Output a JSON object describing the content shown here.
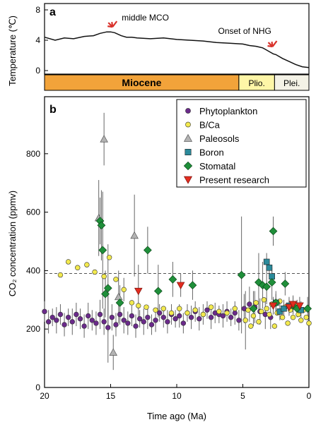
{
  "chart_data": [
    {
      "panel_label": "a",
      "type": "line",
      "ylabel": "Temperature (℃)",
      "xlim": [
        20,
        0
      ],
      "ylim": [
        0,
        8
      ],
      "y_ticks": [
        "8",
        "4",
        "0"
      ],
      "series": [
        {
          "x": [
            20,
            19.2,
            18.5,
            17.8,
            17,
            16.3,
            15.8,
            15.3,
            15.0,
            14.7,
            14.2,
            13.8,
            13.4,
            13,
            12,
            11,
            10,
            9,
            8,
            7,
            6,
            5,
            4.5,
            4,
            3.5,
            3.3,
            3,
            2.7,
            2.5,
            2,
            1.5,
            1,
            0.5,
            0
          ],
          "y": [
            4.4,
            4.0,
            4.3,
            4.2,
            4.5,
            4.6,
            4.9,
            5.1,
            5.1,
            5.0,
            4.6,
            4.4,
            4.4,
            4.3,
            4.2,
            4.3,
            4.1,
            4.0,
            3.9,
            3.7,
            3.6,
            3.5,
            3.3,
            3.2,
            3.0,
            2.8,
            2.5,
            2.2,
            2.1,
            1.6,
            1.2,
            0.8,
            0.5,
            0.4
          ]
        }
      ],
      "annotations": [
        {
          "text": "middle MCO",
          "x": 14.8,
          "y": 5.2,
          "arrow_color": "#d9322b"
        },
        {
          "text": "Onset of NHG",
          "x": 2.7,
          "y": 2.6,
          "arrow_color": "#d9322b"
        }
      ],
      "epochs": [
        {
          "name": "Miocene",
          "start": 20,
          "end": 5.3,
          "color": "#f2a33a"
        },
        {
          "name": "Plio.",
          "start": 5.3,
          "end": 2.6,
          "color": "#fef6a7"
        },
        {
          "name": "Plei.",
          "start": 2.6,
          "end": 0,
          "color": "#f4f2e6"
        }
      ]
    },
    {
      "panel_label": "b",
      "type": "scatter",
      "xlabel": "Time ago (Ma)",
      "ylabel": "CO₂ concentration (ppmv)",
      "xlim": [
        20,
        0
      ],
      "ylim": [
        0,
        1000
      ],
      "x_ticks": [
        "20",
        "15",
        "10",
        "5",
        "0"
      ],
      "y_ticks": [
        "0",
        "200",
        "400",
        "600",
        "800"
      ],
      "reference_line": {
        "y": 390,
        "style": "dashed"
      },
      "legend_position": "top-right",
      "series": [
        {
          "name": "Phytoplankton",
          "marker": "circle",
          "color": "#6a2a8a",
          "x": [
            20,
            19.7,
            19.4,
            19.1,
            18.8,
            18.5,
            18.2,
            17.9,
            17.6,
            17.3,
            17,
            16.7,
            16.4,
            16.1,
            15.8,
            15.5,
            15.2,
            14.9,
            14.6,
            14.3,
            14,
            13.7,
            13.4,
            13.1,
            12.8,
            12.5,
            12.2,
            11.9,
            11.6,
            11.3,
            11,
            10.7,
            10.4,
            10.1,
            9.8,
            9.5,
            9.2,
            8.9,
            8.6,
            8.3,
            8,
            7.7,
            7.4,
            7.1,
            6.8,
            6.5,
            6.2,
            5.9,
            5.6,
            5.3,
            4.9,
            4.5,
            4.1,
            3.7,
            3.3,
            2.9
          ],
          "y": [
            260,
            225,
            240,
            230,
            250,
            215,
            240,
            225,
            250,
            235,
            210,
            245,
            230,
            220,
            250,
            225,
            205,
            240,
            215,
            250,
            230,
            220,
            245,
            210,
            235,
            225,
            240,
            215,
            230,
            255,
            240,
            225,
            250,
            235,
            245,
            220,
            255,
            240,
            260,
            235,
            250,
            265,
            240,
            255,
            250,
            245,
            260,
            240,
            255,
            230,
            270,
            285,
            275,
            260,
            250,
            240
          ],
          "y_err": [
            35,
            40,
            30,
            45,
            35,
            40,
            30,
            45,
            40,
            35,
            40,
            45,
            35,
            40,
            50,
            45,
            120,
            45,
            40,
            35,
            45,
            40,
            35,
            40,
            30,
            45,
            40,
            35,
            40,
            30,
            35,
            40,
            35,
            30,
            40,
            35,
            30,
            40,
            35,
            40,
            35,
            30,
            40,
            35,
            30,
            40,
            35,
            30,
            40,
            35,
            50,
            60,
            55,
            45,
            50,
            40
          ]
        },
        {
          "name": "B/Ca",
          "marker": "circle",
          "color": "#f2e94e",
          "x": [
            18.8,
            18.2,
            17.5,
            16.8,
            16.2,
            15.5,
            15.1,
            14.6,
            14,
            13.4,
            12.9,
            12.3,
            11.6,
            11,
            10.4,
            9.8,
            9.2,
            8.6,
            8,
            7.4,
            6.8,
            6.2,
            5.6,
            4.8,
            4.6,
            4.4,
            4.2,
            4,
            3.8,
            3.6,
            3.4,
            3.2,
            3,
            2.8,
            2.6,
            2.4,
            2.2,
            2,
            1.8,
            1.6,
            1.4,
            1.2,
            1,
            0.8,
            0.6,
            0.4,
            0.2,
            0
          ],
          "y": [
            385,
            430,
            410,
            420,
            395,
            380,
            445,
            370,
            335,
            290,
            280,
            275,
            265,
            270,
            255,
            270,
            255,
            265,
            250,
            275,
            260,
            255,
            270,
            230,
            265,
            210,
            245,
            290,
            225,
            260,
            300,
            270,
            250,
            285,
            210,
            255,
            295,
            240,
            275,
            220,
            265,
            240,
            280,
            250,
            230,
            265,
            240,
            220
          ],
          "y_err": [
            0,
            0,
            0,
            0,
            0,
            0,
            0,
            0,
            40,
            0,
            0,
            0,
            0,
            0,
            0,
            0,
            0,
            0,
            0,
            0,
            0,
            0,
            0,
            100,
            0,
            0,
            0,
            0,
            0,
            0,
            0,
            0,
            0,
            0,
            0,
            0,
            0,
            0,
            0,
            0,
            0,
            0,
            0,
            0,
            0,
            0,
            0,
            0
          ]
        },
        {
          "name": "Paleosols",
          "marker": "triangle-up",
          "color": "#b3b3b3",
          "x": [
            15.5,
            15.9,
            13.2,
            14.4,
            14.8
          ],
          "y": [
            850,
            580,
            520,
            310,
            120
          ],
          "y_err": [
            90,
            130,
            140,
            90,
            60
          ]
        },
        {
          "name": "Boron",
          "marker": "square",
          "color": "#2b8a9b",
          "x": [
            3.2,
            3.0,
            2.8,
            2.5,
            2.2,
            1.9,
            1.5,
            0.6
          ],
          "y": [
            430,
            410,
            380,
            290,
            260,
            270,
            280,
            265
          ],
          "y_err": [
            30,
            30,
            30,
            30,
            30,
            30,
            30,
            30
          ]
        },
        {
          "name": "Stomatal",
          "marker": "diamond",
          "color": "#1f8f3a",
          "x": [
            15.8,
            15.7,
            15.6,
            15.2,
            15.4,
            14.3,
            12.2,
            11.4,
            10.3,
            8.8,
            5.1,
            4.2,
            3.8,
            3.5,
            3.2,
            2.8,
            2.7,
            2.5,
            1.8,
            1.2,
            0.9,
            0.1
          ],
          "y": [
            570,
            555,
            470,
            340,
            320,
            290,
            470,
            330,
            370,
            350,
            385,
            270,
            360,
            350,
            345,
            360,
            535,
            290,
            355,
            280,
            270,
            270
          ],
          "y_err": [
            80,
            120,
            200,
            150,
            80,
            60,
            80,
            90,
            60,
            50,
            200,
            60,
            100,
            80,
            60,
            60,
            50,
            40,
            40,
            30,
            30,
            40
          ]
        },
        {
          "name": "Present research",
          "marker": "triangle-down",
          "color": "#e32d20",
          "x": [
            12.9,
            9.7,
            2.7,
            1.5,
            1.2,
            0.7
          ],
          "y": [
            330,
            350,
            280,
            275,
            285,
            280
          ],
          "y_err": [
            90,
            40,
            30,
            30,
            30,
            30
          ]
        }
      ]
    }
  ]
}
